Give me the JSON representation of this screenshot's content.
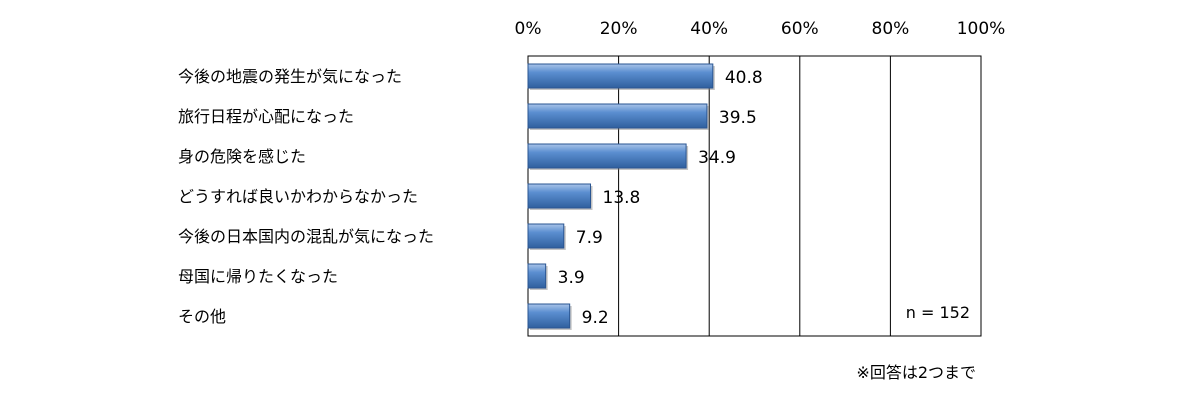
{
  "chart_data": {
    "type": "bar",
    "orientation": "horizontal",
    "categories": [
      "今後の地震の発生が気になった",
      "旅行日程が心配になった",
      "身の危険を感じた",
      "どうすれば良いかわからなかった",
      "今後の日本国内の混乱が気になった",
      "母国に帰りたくなった",
      "その他"
    ],
    "values": [
      40.8,
      39.5,
      34.9,
      13.8,
      7.9,
      3.9,
      9.2
    ],
    "value_labels": [
      "40.8",
      "39.5",
      "34.9",
      "13.8",
      "7.9",
      "3.9",
      "9.2"
    ],
    "xlim": [
      0,
      100
    ],
    "x_ticks": [
      0,
      20,
      40,
      60,
      80,
      100
    ],
    "x_tick_labels": [
      "0%",
      "20%",
      "40%",
      "60%",
      "80%",
      "100%"
    ],
    "x_axis_position": "top",
    "grid": true,
    "legend": "none",
    "annotation_n": "n = 152",
    "footnote": "※回答は2つまで",
    "bar_color": "#4a7ebb"
  }
}
